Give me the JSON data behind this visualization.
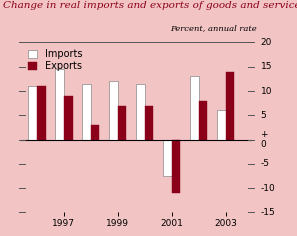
{
  "title": "Change in real imports and exports of goods and services",
  "subtitle": "Percent, annual rate",
  "years": [
    1996,
    1997,
    1998,
    1999,
    2000,
    2001,
    2002,
    2003
  ],
  "imports": [
    11,
    14.5,
    11.5,
    12,
    11.5,
    -7.5,
    13,
    6
  ],
  "exports": [
    11,
    9,
    3,
    7,
    7,
    -11,
    8,
    14
  ],
  "bar_width": 0.32,
  "ylim": [
    -15,
    20
  ],
  "yticks": [
    -15,
    -10,
    -5,
    0,
    5,
    10,
    15,
    20
  ],
  "xtick_years": [
    1997,
    1999,
    2001,
    2003
  ],
  "imports_color": "#FFFFFF",
  "exports_color": "#8B0019",
  "background_color": "#F2C4C4",
  "bar_edge_color": "#888888",
  "title_fontsize": 7.5,
  "subtitle_fontsize": 6,
  "tick_fontsize": 6.5,
  "legend_fontsize": 7
}
